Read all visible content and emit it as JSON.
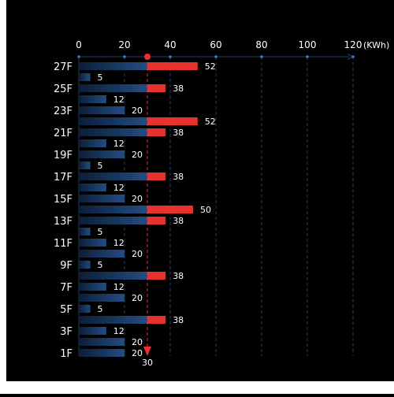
{
  "chart_data": {
    "type": "bar",
    "orientation": "horizontal",
    "x_unit": "(KWh)",
    "x_ticks": [
      "0",
      "20",
      "40",
      "60",
      "80",
      "100",
      "120"
    ],
    "xlim": [
      0,
      120
    ],
    "categories": [
      "27F",
      "",
      "25F",
      "",
      "23F",
      "",
      "21F",
      "",
      "19F",
      "",
      "17F",
      "",
      "15F",
      "",
      "13F",
      "",
      "11F",
      "",
      "9F",
      "",
      "7F",
      "",
      "5F",
      "",
      "3F",
      "",
      "1F"
    ],
    "values": [
      52,
      5,
      38,
      12,
      20,
      52,
      38,
      12,
      20,
      5,
      38,
      12,
      20,
      50,
      38,
      5,
      12,
      20,
      5,
      38,
      12,
      20,
      5,
      38,
      12,
      20,
      20
    ],
    "threshold": 30,
    "threshold_label": "30",
    "colors": {
      "normal_start": "#0d1e36",
      "normal_end": "#224d82",
      "over_threshold": "#e8322f",
      "threshold_line": "#e8322f",
      "grid": "#1e3f66",
      "text": "#ffffff"
    }
  }
}
